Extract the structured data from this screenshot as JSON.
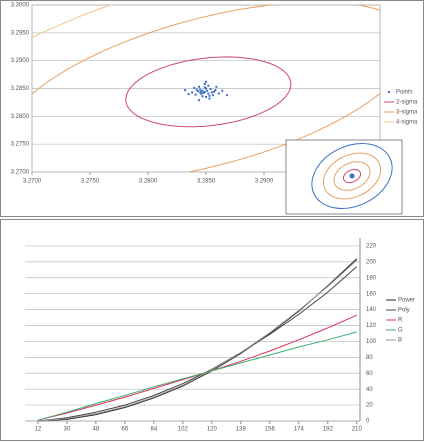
{
  "chart_data": [
    {
      "type": "scatter",
      "xlim": [
        3.27,
        3.3
      ],
      "xticks": [
        {
          "value": 3.27,
          "label": "3.2700"
        },
        {
          "value": 3.275,
          "label": "3.2750"
        },
        {
          "value": 3.28,
          "label": "3.2800"
        },
        {
          "value": 3.285,
          "label": "3.2850"
        },
        {
          "value": 3.29,
          "label": "3.2900"
        },
        {
          "value": 3.295,
          "label": "3.2950"
        },
        {
          "value": 3.3,
          "label": "3.3000"
        }
      ],
      "ylim": [
        3.27,
        3.3
      ],
      "yticks": [
        {
          "value": 3.27,
          "label": "3.2700"
        },
        {
          "value": 3.275,
          "label": "3.2750"
        },
        {
          "value": 3.28,
          "label": "3.2800"
        },
        {
          "value": 3.285,
          "label": "3.2850"
        },
        {
          "value": 3.29,
          "label": "3.2900"
        },
        {
          "value": 3.295,
          "label": "3.2950"
        },
        {
          "value": 3.3,
          "label": "3.3000"
        }
      ],
      "grid": true,
      "points": {
        "name": "Points",
        "color": "#3a6fc4",
        "x": [
          3.2849,
          3.2845,
          3.2852,
          3.2847,
          3.2855,
          3.2841,
          3.285,
          3.2858,
          3.2843,
          3.2846,
          3.2853,
          3.2849,
          3.2838,
          3.2861,
          3.2851,
          3.2844,
          3.2856,
          3.2848,
          3.2842,
          3.2854,
          3.285,
          3.2846,
          3.2835,
          3.2864,
          3.2852,
          3.2847,
          3.284,
          3.2857,
          3.2849,
          3.2853,
          3.2845,
          3.2868,
          3.2832,
          3.285,
          3.2844,
          3.2859
        ],
        "y": [
          3.2844,
          3.2848,
          3.2841,
          3.2846,
          3.2843,
          3.2839,
          3.285,
          3.2847,
          3.2845,
          3.284,
          3.2837,
          3.2852,
          3.2843,
          3.2841,
          3.2846,
          3.2853,
          3.2838,
          3.2842,
          3.2848,
          3.2849,
          3.2835,
          3.2844,
          3.284,
          3.2846,
          3.2855,
          3.2836,
          3.2851,
          3.2844,
          3.2858,
          3.2832,
          3.2843,
          3.2838,
          3.2847,
          3.2862,
          3.2829,
          3.2853
        ]
      },
      "ellipses": [
        {
          "name": "2-sigma",
          "color": "#d0457a",
          "cx": 3.2852,
          "cy": 3.2844,
          "a": 0.0075,
          "b": 0.0058,
          "angle": 30
        },
        {
          "name": "3-sigma",
          "color": "#e8a060",
          "cx": 3.2852,
          "cy": 3.2844,
          "a": 0.021,
          "b": 0.0115,
          "angle": 40
        },
        {
          "name": "4-sigma",
          "color": "#f0c48c",
          "cx": 3.2852,
          "cy": 3.2844,
          "a": 0.032,
          "b": 0.0175,
          "angle": 40
        }
      ]
    },
    {
      "type": "line",
      "x": [
        12,
        30,
        48,
        66,
        84,
        102,
        120,
        138,
        156,
        174,
        192,
        210
      ],
      "xlim": [
        4,
        212
      ],
      "xticks": [
        12,
        30,
        48,
        66,
        84,
        102,
        120,
        138,
        156,
        174,
        192,
        210
      ],
      "ylim": [
        0,
        230
      ],
      "yticks": [
        0,
        20,
        40,
        60,
        80,
        100,
        120,
        140,
        160,
        180,
        200,
        220
      ],
      "grid": true,
      "series": [
        {
          "name": "Power",
          "color": "#222222",
          "values": [
            0,
            2,
            8,
            17,
            29,
            44,
            63,
            85,
            110,
            138,
            170,
            204
          ]
        },
        {
          "name": "Poly",
          "color": "#444444",
          "values": [
            0,
            4,
            11,
            20,
            32,
            47,
            65,
            86,
            109,
            134,
            162,
            194
          ]
        },
        {
          "name": "R",
          "color": "#d8305a",
          "values": [
            1,
            10,
            20,
            30,
            41,
            52,
            63,
            75,
            88,
            102,
            117,
            133
          ]
        },
        {
          "name": "G",
          "color": "#40b070",
          "values": [
            1,
            11,
            22,
            32,
            43,
            53,
            63,
            73,
            83,
            93,
            102,
            112
          ]
        },
        {
          "name": "B",
          "color": "#999999",
          "values": [
            0,
            3,
            9,
            18,
            30,
            45,
            64,
            86,
            111,
            139,
            169,
            202
          ]
        }
      ]
    }
  ]
}
